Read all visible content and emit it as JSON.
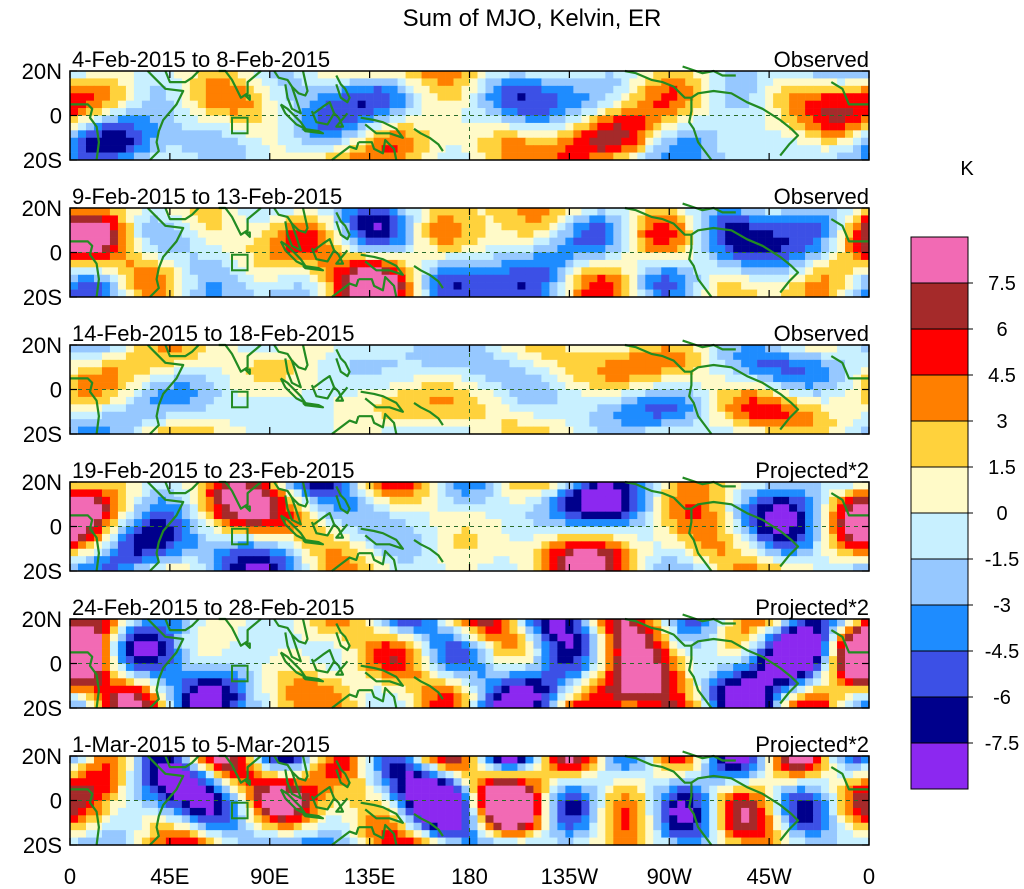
{
  "chart_data": {
    "type": "heatmap",
    "title": "Sum of MJO, Kelvin, ER",
    "x_ticks": [
      "0",
      "45E",
      "90E",
      "135E",
      "180",
      "135W",
      "90W",
      "45W",
      "0"
    ],
    "y_ticks": [
      "20N",
      "0",
      "20S"
    ],
    "x_range_deg_east": [
      0,
      360
    ],
    "y_range_deg": [
      -20,
      20
    ],
    "colorbar": {
      "unit": "K",
      "labels": [
        "7.5",
        "6",
        "4.5",
        "3",
        "1.5",
        "0",
        "-1.5",
        "-3",
        "-4.5",
        "-6",
        "-7.5"
      ],
      "colors": [
        "#f26ab4",
        "#a52a2a",
        "#ff0000",
        "#ff7f00",
        "#ffd23c",
        "#fffac8",
        "#c8f0ff",
        "#96c8ff",
        "#1e8cff",
        "#3c50e6",
        "#00008c",
        "#8c28f0"
      ]
    },
    "panels": [
      {
        "date_range": "4-Feb-2015 to 8-Feb-2015",
        "label": "Observed",
        "amp": 0.9,
        "seed": 1
      },
      {
        "date_range": "9-Feb-2015 to 13-Feb-2015",
        "label": "Observed",
        "amp": 0.75,
        "seed": 2
      },
      {
        "date_range": "14-Feb-2015 to 18-Feb-2015",
        "label": "Observed",
        "amp": 0.45,
        "seed": 3
      },
      {
        "date_range": "19-Feb-2015 to 23-Feb-2015",
        "label": "Projected*2",
        "amp": 1.05,
        "seed": 4
      },
      {
        "date_range": "24-Feb-2015 to 28-Feb-2015",
        "label": "Projected*2",
        "amp": 1.25,
        "seed": 5
      },
      {
        "date_range": "1-Mar-2015 to 5-Mar-2015",
        "label": "Projected*2",
        "amp": 1.25,
        "seed": 6
      }
    ]
  }
}
